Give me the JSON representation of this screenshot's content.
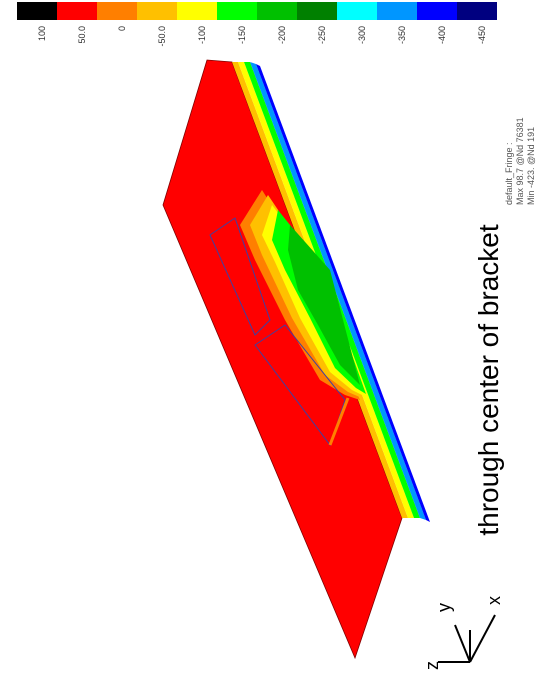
{
  "legend": {
    "labels": [
      "100",
      "50.0",
      "0",
      "-50.0",
      "-100",
      "-150",
      "-200",
      "-250",
      "-300",
      "-350",
      "-400",
      "-450"
    ],
    "colors": [
      "#000000",
      "#ff0000",
      "#ff7f00",
      "#ffc000",
      "#ffff00",
      "#00ff00",
      "#00c000",
      "#008000",
      "#00ffff",
      "#0096ff",
      "#0000ff",
      "#000080"
    ]
  },
  "info": {
    "lines": [
      "default_Fringe :",
      "Max 98.7 @Nd 76381",
      "Min -423. @Nd 191"
    ]
  },
  "caption": "through center of bracket",
  "triad": {
    "z": "z",
    "y": "y",
    "x": "x"
  }
}
